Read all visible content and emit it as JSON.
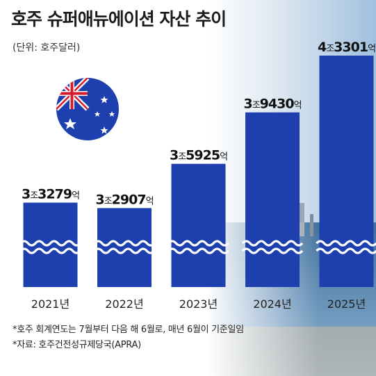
{
  "title": "호주 슈퍼애뉴에이션 자산 추이",
  "unit_label": "(단위: 호주달러)",
  "notes": [
    "*호주 회계연도는 7월부터 다음 해 6월로, 매년 6월이 기준일임",
    "*자료: 호주건전성규제당국(APRA)"
  ],
  "colors": {
    "bar": "#1e3fae",
    "flag_blue": "#1e3fae",
    "flag_red": "#d61a2b"
  },
  "chart_data": {
    "type": "bar",
    "categories": [
      "2021년",
      "2022년",
      "2023년",
      "2024년",
      "2025년"
    ],
    "values": [
      33279,
      32907,
      35925,
      39430,
      43301
    ],
    "value_unit": "억 호주달러",
    "labels": [
      {
        "big": "3",
        "u1": "조",
        "num": "3279",
        "u2": "억"
      },
      {
        "big": "3",
        "u1": "조",
        "num": "2907",
        "u2": "억"
      },
      {
        "big": "3",
        "u1": "조",
        "num": "5925",
        "u2": "억"
      },
      {
        "big": "3",
        "u1": "조",
        "num": "9430",
        "u2": "억"
      },
      {
        "big": "4",
        "u1": "조",
        "num": "3301",
        "u2": "억"
      }
    ],
    "axis_break": true
  }
}
